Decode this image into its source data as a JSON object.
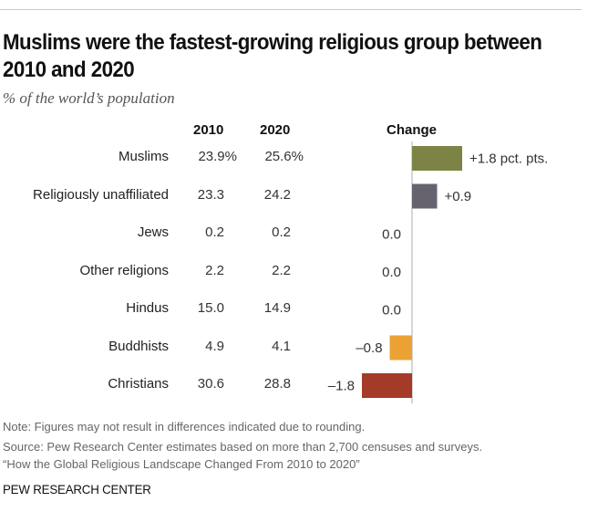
{
  "header": {
    "title": "Muslims were the fastest-growing religious group between 2010 and 2020",
    "subtitle": "% of the world’s population"
  },
  "columns": {
    "y2010": "2010",
    "y2020": "2020",
    "change": "Change"
  },
  "footer": {
    "note": "Note: Figures may not result in differences indicated due to rounding.",
    "source": "Source: Pew Research Center estimates based on more than 2,700 censuses and surveys.",
    "report": "“How the Global Religious Landscape Changed From 2010 to 2020”",
    "brand": "PEW RESEARCH CENTER"
  },
  "chart_data": {
    "type": "bar",
    "orientation": "horizontal",
    "title": "Muslims were the fastest-growing religious group between 2010 and 2020",
    "subtitle": "% of the world’s population",
    "xlabel": "Change",
    "ylabel": "",
    "xlim": [
      -1.8,
      1.8
    ],
    "grid": false,
    "categories": [
      "Muslims",
      "Religiously unaffiliated",
      "Jews",
      "Other religions",
      "Hindus",
      "Buddhists",
      "Christians"
    ],
    "table": {
      "2010": [
        "23.9%",
        "23.3",
        "0.2",
        "2.2",
        "15.0",
        "4.9",
        "30.6"
      ],
      "2020": [
        "25.6%",
        "24.2",
        "0.2",
        "2.2",
        "14.9",
        "4.1",
        "28.8"
      ]
    },
    "series": [
      {
        "name": "Change",
        "values": [
          1.8,
          0.9,
          0.0,
          0.0,
          0.0,
          -0.8,
          -1.8
        ],
        "labels": [
          "+1.8 pct. pts.",
          "+0.9",
          "0.0",
          "0.0",
          "0.0",
          "–0.8",
          "–1.8"
        ],
        "colors": [
          "#7d8345",
          "#66636f",
          "#999999",
          "#999999",
          "#999999",
          "#eba133",
          "#a33b28"
        ]
      }
    ]
  }
}
